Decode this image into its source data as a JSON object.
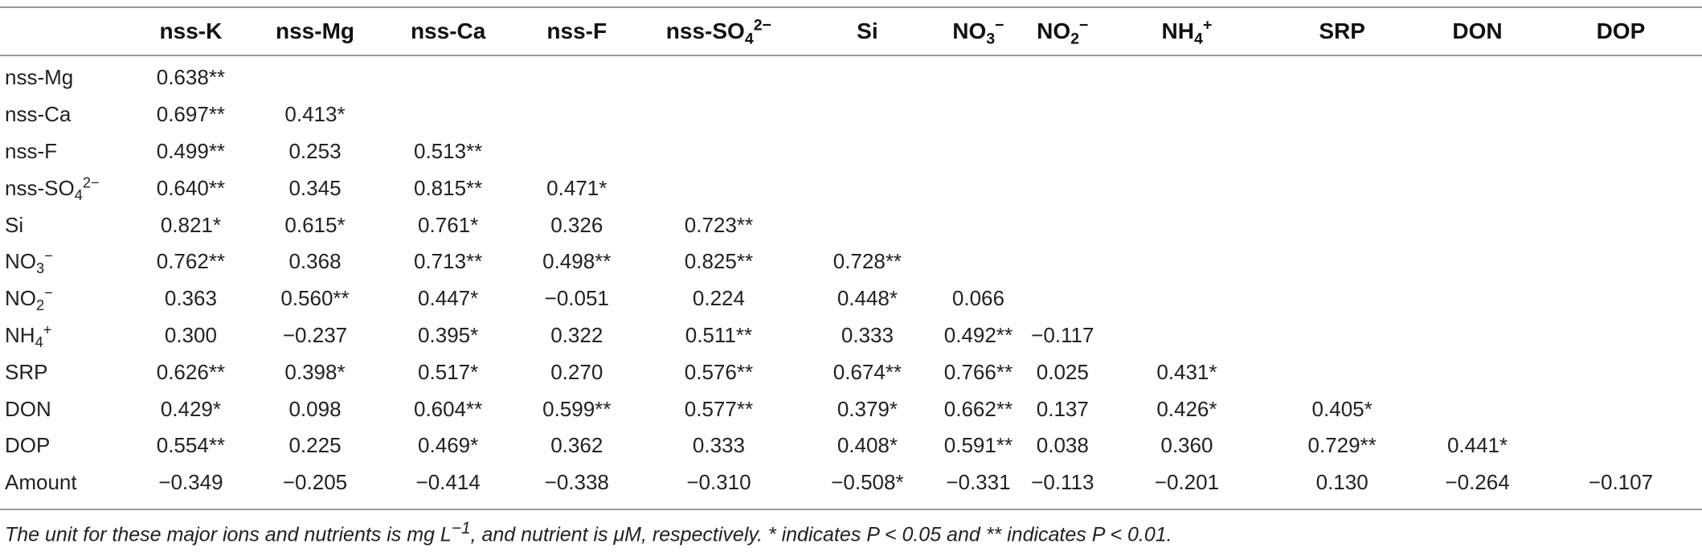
{
  "columns": [
    {
      "base": "nss-K",
      "sub": "",
      "sup": ""
    },
    {
      "base": "nss-Mg",
      "sub": "",
      "sup": ""
    },
    {
      "base": "nss-Ca",
      "sub": "",
      "sup": ""
    },
    {
      "base": "nss-F",
      "sub": "",
      "sup": ""
    },
    {
      "base": "nss-SO",
      "sub": "4",
      "sup": "2−"
    },
    {
      "base": "Si",
      "sub": "",
      "sup": ""
    },
    {
      "base": "NO",
      "sub": "3",
      "sup": "−"
    },
    {
      "base": "NO",
      "sub": "2",
      "sup": "−"
    },
    {
      "base": "NH",
      "sub": "4",
      "sup": "+"
    },
    {
      "base": "SRP",
      "sub": "",
      "sup": ""
    },
    {
      "base": "DON",
      "sub": "",
      "sup": ""
    },
    {
      "base": "DOP",
      "sub": "",
      "sup": ""
    }
  ],
  "rows": [
    {
      "label": {
        "base": "nss-Mg",
        "sub": "",
        "sup": ""
      },
      "values": [
        "0.638**"
      ]
    },
    {
      "label": {
        "base": "nss-Ca",
        "sub": "",
        "sup": ""
      },
      "values": [
        "0.697**",
        "0.413*"
      ]
    },
    {
      "label": {
        "base": "nss-F",
        "sub": "",
        "sup": ""
      },
      "values": [
        "0.499**",
        "0.253",
        "0.513**"
      ]
    },
    {
      "label": {
        "base": "nss-SO",
        "sub": "4",
        "sup": "2−"
      },
      "values": [
        "0.640**",
        "0.345",
        "0.815**",
        "0.471*"
      ]
    },
    {
      "label": {
        "base": "Si",
        "sub": "",
        "sup": ""
      },
      "values": [
        "0.821*",
        "0.615*",
        "0.761*",
        "0.326",
        "0.723**"
      ]
    },
    {
      "label": {
        "base": "NO",
        "sub": "3",
        "sup": "−"
      },
      "values": [
        "0.762**",
        "0.368",
        "0.713**",
        "0.498**",
        "0.825**",
        "0.728**"
      ]
    },
    {
      "label": {
        "base": "NO",
        "sub": "2",
        "sup": "−"
      },
      "values": [
        "0.363",
        "0.560**",
        "0.447*",
        "−0.051",
        "0.224",
        "0.448*",
        "0.066"
      ]
    },
    {
      "label": {
        "base": "NH",
        "sub": "4",
        "sup": "+"
      },
      "values": [
        "0.300",
        "−0.237",
        "0.395*",
        "0.322",
        "0.511**",
        "0.333",
        "0.492**",
        "−0.117"
      ]
    },
    {
      "label": {
        "base": "SRP",
        "sub": "",
        "sup": ""
      },
      "values": [
        "0.626**",
        "0.398*",
        "0.517*",
        "0.270",
        "0.576**",
        "0.674**",
        "0.766**",
        "0.025",
        "0.431*"
      ]
    },
    {
      "label": {
        "base": "DON",
        "sub": "",
        "sup": ""
      },
      "values": [
        "0.429*",
        "0.098",
        "0.604**",
        "0.599**",
        "0.577**",
        "0.379*",
        "0.662**",
        "0.137",
        "0.426*",
        "0.405*"
      ]
    },
    {
      "label": {
        "base": "DOP",
        "sub": "",
        "sup": ""
      },
      "values": [
        "0.554**",
        "0.225",
        "0.469*",
        "0.362",
        "0.333",
        "0.408*",
        "0.591**",
        "0.038",
        "0.360",
        "0.729**",
        "0.441*"
      ]
    },
    {
      "label": {
        "base": "Amount",
        "sub": "",
        "sup": ""
      },
      "values": [
        "−0.349",
        "−0.205",
        "−0.414",
        "−0.338",
        "−0.310",
        "−0.508*",
        "−0.331",
        "−0.113",
        "−0.201",
        "0.130",
        "−0.264",
        "−0.107"
      ]
    }
  ],
  "footnote": {
    "part1": "The unit for these major ions and nutrients is mg L",
    "part1_sup": "−1",
    "part2": ", and nutrient is μM, respectively. * indicates P < 0.05 and ** indicates P < 0.01."
  }
}
